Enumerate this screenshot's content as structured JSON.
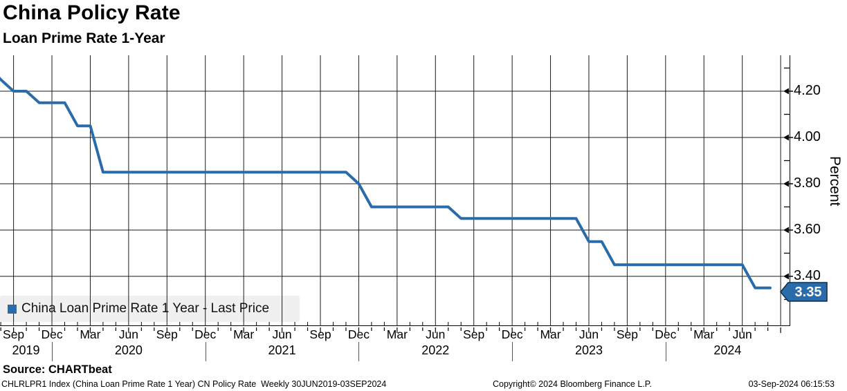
{
  "header": {
    "title": "China Policy Rate",
    "subtitle": "Loan Prime Rate 1-Year"
  },
  "legend": {
    "label": "China Loan Prime Rate 1 Year - Last Price"
  },
  "last_price_tag": "3.35",
  "y_axis_label": "Percent",
  "source_line": "Source: CHARTbeat",
  "footer": {
    "left": "CHLRLPR1 Index (China Loan Prime Rate 1 Year) CN Policy Rate  Weekly 30JUN2019-03SEP2024",
    "center": "Copyright© 2024 Bloomberg Finance L.P.",
    "right": "03-Sep-2024 06:15:53"
  },
  "colors": {
    "line": "#2A6CA9",
    "tag_fill": "#2A6CA9",
    "tag_border": "#0E2B45",
    "legend_swatch": "#2A6CA9",
    "legend_bg": "#F0F0F0",
    "grid": "#1A1A1A"
  },
  "chart_data": {
    "type": "line",
    "title": "China Policy Rate",
    "subtitle": "Loan Prime Rate 1-Year",
    "ylabel": "Percent",
    "frequency": "Weekly",
    "period": "30JUN2019-03SEP2024",
    "grid": true,
    "legend_position": "bottom-left",
    "ylim": [
      3.19,
      4.36
    ],
    "y_tick_labels": [
      "4.20",
      "4.00",
      "3.80",
      "3.60",
      "3.40"
    ],
    "y_minor_ticks": [
      4.3,
      4.1,
      3.9,
      3.7,
      3.5,
      3.3
    ],
    "x_tick_labels": [
      "Sep",
      "Dec",
      "Mar",
      "Jun",
      "Sep",
      "Dec",
      "Mar",
      "Jun",
      "Sep",
      "Dec",
      "Mar",
      "Jun",
      "Sep",
      "Dec",
      "Mar",
      "Jun",
      "Sep",
      "Dec",
      "Mar",
      "Jun"
    ],
    "years": [
      "2019",
      "2020",
      "2021",
      "2022",
      "2023",
      "2024"
    ],
    "last_value": 3.35,
    "series": [
      {
        "name": "China Loan Prime Rate 1 Year - Last Price",
        "points": [
          {
            "date": "2019-07",
            "value": 4.31
          },
          {
            "date": "2019-08",
            "value": 4.25
          },
          {
            "date": "2019-09",
            "value": 4.2
          },
          {
            "date": "2019-11",
            "value": 4.15
          },
          {
            "date": "2020-02",
            "value": 4.05
          },
          {
            "date": "2020-04",
            "value": 3.85
          },
          {
            "date": "2021-12",
            "value": 3.8
          },
          {
            "date": "2022-01",
            "value": 3.7
          },
          {
            "date": "2022-08",
            "value": 3.65
          },
          {
            "date": "2023-06",
            "value": 3.55
          },
          {
            "date": "2023-08",
            "value": 3.45
          },
          {
            "date": "2024-07",
            "value": 3.35
          }
        ]
      }
    ]
  }
}
